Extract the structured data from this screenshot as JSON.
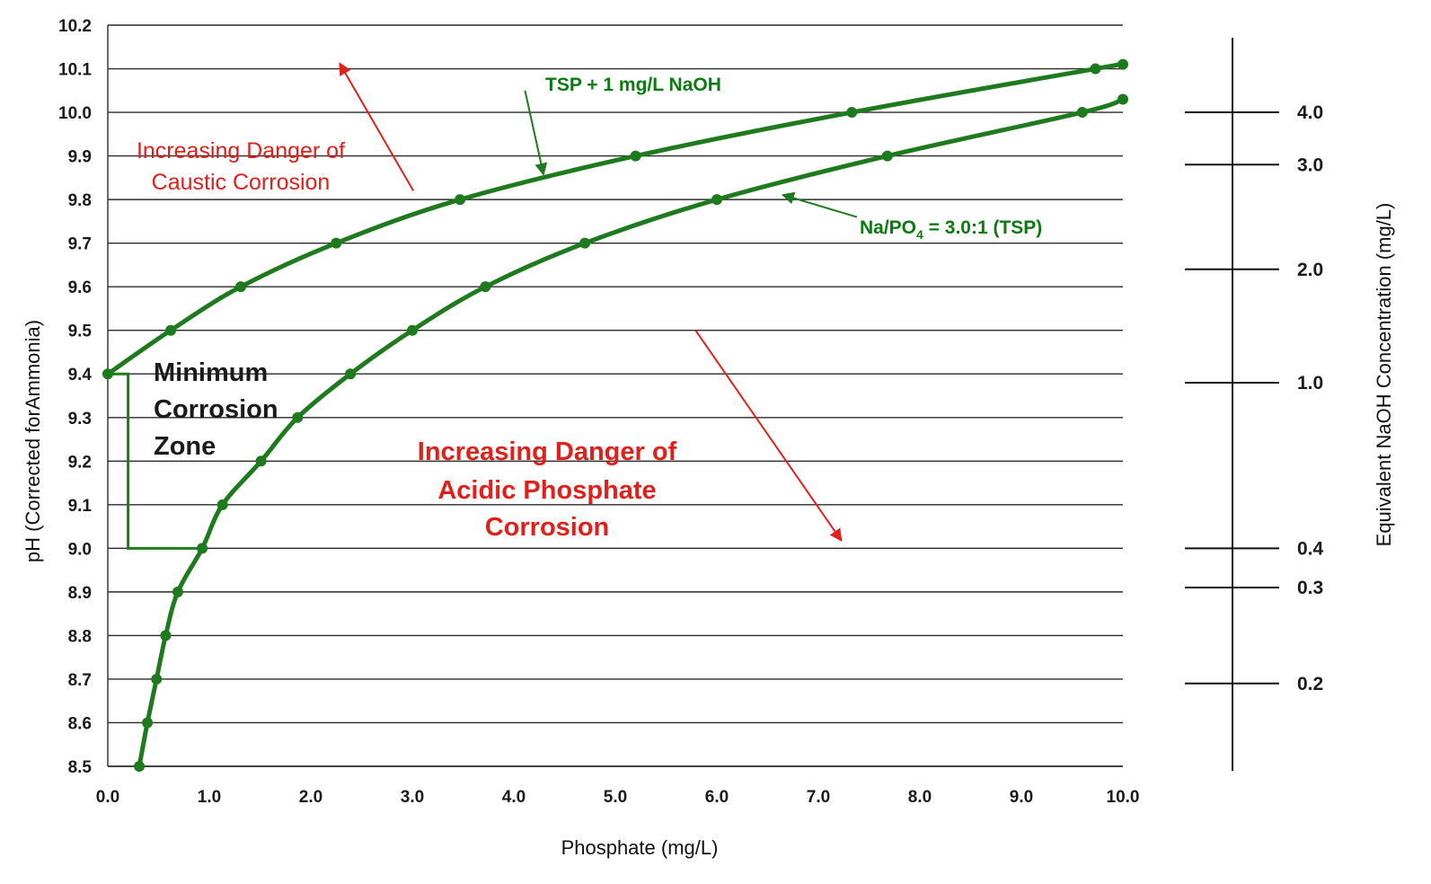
{
  "chart_data": {
    "type": "line",
    "xlabel": "Phosphate (mg/L)",
    "ylabel": "pH (Corrected forAmmonia)",
    "xlim": [
      0,
      10
    ],
    "ylim": [
      8.5,
      10.2
    ],
    "xticks": [
      0,
      1,
      2,
      3,
      4,
      5,
      6,
      7,
      8,
      9,
      10
    ],
    "yticks": [
      8.5,
      8.6,
      8.7,
      8.8,
      8.9,
      9.0,
      9.1,
      9.2,
      9.3,
      9.4,
      9.5,
      9.6,
      9.7,
      9.8,
      9.9,
      10.0,
      10.1,
      10.2
    ],
    "grid": "horizontal",
    "series": [
      {
        "name": "TSP + 1 mg/L NaOH",
        "color": "#1d7a1d",
        "x": [
          0.0,
          0.62,
          1.31,
          2.25,
          3.47,
          5.2,
          7.33,
          9.73,
          10.0
        ],
        "y": [
          9.4,
          9.5,
          9.6,
          9.7,
          9.8,
          9.9,
          10.0,
          10.1,
          10.11
        ]
      },
      {
        "name": "Na/PO4 = 3.0:1 (TSP)",
        "color": "#1d7a1d",
        "x": [
          0.31,
          0.39,
          0.48,
          0.57,
          0.69,
          0.93,
          1.13,
          1.51,
          1.87,
          2.39,
          3.0,
          3.72,
          4.7,
          6.0,
          7.68,
          9.6,
          10.0
        ],
        "y": [
          8.5,
          8.6,
          8.7,
          8.8,
          8.9,
          9.0,
          9.1,
          9.2,
          9.3,
          9.4,
          9.5,
          9.6,
          9.7,
          9.8,
          9.9,
          10.0,
          10.03
        ]
      }
    ],
    "annotations": {
      "tsp_naoh_label": "TSP + 1 mg/L NaOH",
      "tsp_label_prefix": "Na/PO",
      "tsp_label_sub": "4",
      "tsp_label_suffix": " = 3.0:1 (TSP)",
      "caustic_line1": "Increasing Danger of",
      "caustic_line2": "Caustic Corrosion",
      "acidic_line1": "Increasing Danger of",
      "acidic_line2": "Acidic Phosphate",
      "acidic_line3": "Corrosion",
      "zone_line1": "Minimum",
      "zone_line2": "Corrosion",
      "zone_line3": "Zone"
    },
    "minimum_corrosion_zone": {
      "x_phosphate": 0.2,
      "ph_low": 9.0,
      "ph_high": 9.4,
      "x_end_phosphate": 0.93
    },
    "secondary_scale": {
      "label": "Equivalent NaOH Concentration (mg/L)",
      "ticks": [
        {
          "label": "4.0",
          "ph": 10.0
        },
        {
          "label": "3.0",
          "ph": 9.88
        },
        {
          "label": "2.0",
          "ph": 9.64
        },
        {
          "label": "1.0",
          "ph": 9.38
        },
        {
          "label": "0.4",
          "ph": 9.0
        },
        {
          "label": "0.3",
          "ph": 8.91
        },
        {
          "label": "0.2",
          "ph": 8.69
        }
      ]
    },
    "colors": {
      "curve": "#1d7a1d",
      "danger": "#e0201b",
      "grid": "#2a2a2a",
      "text": "#1a1a1a"
    }
  }
}
